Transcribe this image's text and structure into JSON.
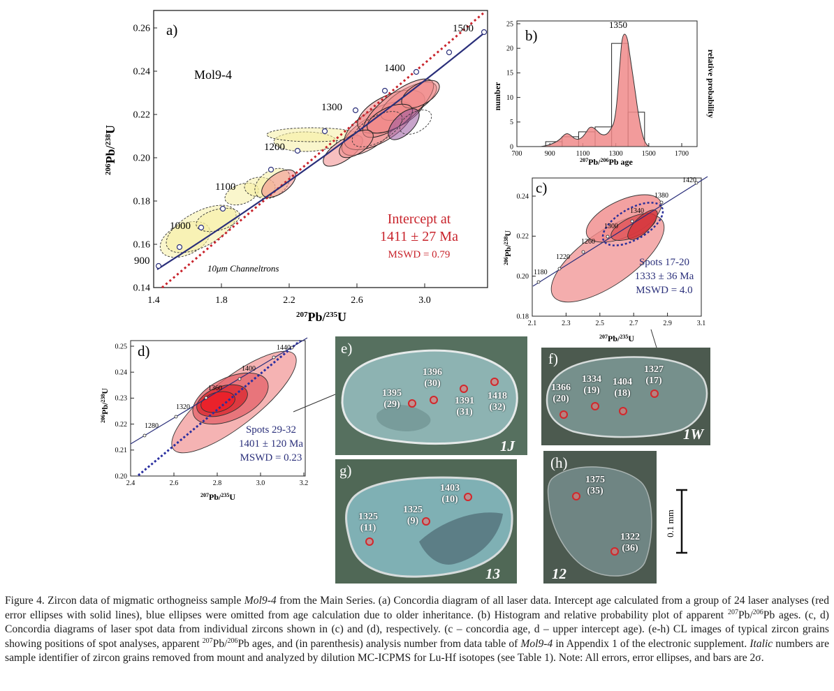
{
  "panel_a": {
    "label": "a)",
    "sample": "Mol9-4",
    "xlabel_sup": "207",
    "xlabel_a": "Pb/",
    "xlabel_sup2": "235",
    "xlabel_b": "U",
    "ylabel": "206Pb/238U",
    "xticks": [
      "1.4",
      "1.8",
      "2.2",
      "2.6",
      "3.0"
    ],
    "yticks": [
      "0.14",
      "0.16",
      "0.18",
      "0.20",
      "0.22",
      "0.24",
      "0.26"
    ],
    "age_labels": [
      "900",
      "1000",
      "1100",
      "1200",
      "1300",
      "1400",
      "1500"
    ],
    "intercept_line1": "Intercept at",
    "intercept_line2": "1411 ± 27  Ma",
    "mswd": "MSWD = 0.79",
    "note": "10μm Channeltrons"
  },
  "panel_b": {
    "label": "b)",
    "peak": "1350",
    "ylabel_left": "number",
    "ylabel_right": "relative probability",
    "xlabel": "207Pb/206Pb age",
    "xticks": [
      "700",
      "900",
      "1100",
      "1300",
      "1500",
      "1700"
    ],
    "yticks": [
      "0",
      "5",
      "10",
      "15",
      "20",
      "25"
    ]
  },
  "panel_c": {
    "label": "c)",
    "xticks": [
      "2.1",
      "2.3",
      "2.5",
      "2.7",
      "2.9",
      "3.1"
    ],
    "yticks": [
      "0.18",
      "0.20",
      "0.22",
      "0.24"
    ],
    "age_labels": [
      "1180",
      "1220",
      "1260",
      "1300",
      "1340",
      "1380",
      "1420"
    ],
    "spots": "Spots 17-20",
    "age": "1333 ± 36 Ma",
    "mswd": "MSWD = 4.0",
    "ylabel": "206Pb/238U",
    "xlabel": "207Pb/235U"
  },
  "panel_d": {
    "label": "d)",
    "xticks": [
      "2.4",
      "2.6",
      "2.8",
      "3.0",
      "3.2"
    ],
    "yticks": [
      "0.20",
      "0.21",
      "0.22",
      "0.23",
      "0.24",
      "0.25"
    ],
    "age_labels": [
      "1280",
      "1320",
      "1360",
      "1400",
      "1440"
    ],
    "spots": "Spots 29-32",
    "age": "1401 ± 120 Ma",
    "mswd": "MSWD = 0.23",
    "ylabel": "206Pb/238U",
    "xlabel": "207Pb/235U"
  },
  "panel_e": {
    "label": "e)",
    "grain": "1J",
    "spots": [
      {
        "age": "1395",
        "n": "(29)"
      },
      {
        "age": "1396",
        "n": "(30)"
      },
      {
        "age": "1391",
        "n": "(31)"
      },
      {
        "age": "1418",
        "n": "(32)"
      }
    ]
  },
  "panel_f": {
    "label": "f)",
    "grain": "1W",
    "spots": [
      {
        "age": "1366",
        "n": "(20)"
      },
      {
        "age": "1334",
        "n": "(19)"
      },
      {
        "age": "1404",
        "n": "(18)"
      },
      {
        "age": "1327",
        "n": "(17)"
      }
    ]
  },
  "panel_g": {
    "label": "g)",
    "grain": "13",
    "spots": [
      {
        "age": "1325",
        "n": "(11)"
      },
      {
        "age": "1325",
        "n": "(9)"
      },
      {
        "age": "1403",
        "n": "(10)"
      }
    ]
  },
  "panel_h": {
    "label": "(h)",
    "grain": "12",
    "spots": [
      {
        "age": "1375",
        "n": "(35)"
      },
      {
        "age": "1322",
        "n": "(36)"
      }
    ]
  },
  "scale_bar": "0.1 mm",
  "caption": {
    "p1": "Figure 4. Zircon data of migmatic orthogneiss sample ",
    "sample1": "Mol9-4",
    "p2": " from the Main Series. (a) Concordia diagram of all laser data. Intercept age calculated from a group of 24 laser analyses (red error ellipses with solid lines), blue ellipses were omitted from age calculation due to older inheritance. (b) Histogram and relative probability plot of apparent ",
    "sup1": "207",
    "p3": "Pb/",
    "sup2": "206",
    "p4": "Pb ages. (c, d) Concordia diagrams of laser spot data from individual zircons shown in (c) and (d), respectively. (c – concordia age, d – upper intercept age). (e-h) CL images of typical zircon grains showing positions of spot analyses, apparent ",
    "sup3": "207",
    "p5": "Pb/",
    "sup4": "206",
    "p6": "Pb ages, and (in parenthesis) analysis number from data table of ",
    "sample2": "Mol9-4",
    "p7": " in Appendix 1 of the electronic supplement. ",
    "italic1": "Italic",
    "p8": " numbers are sample identifier of zircon grains removed from mount and analyzed by dilution MC-ICPMS for Lu-Hf isotopes (see Table 1). Note: All errors, error ellipses, and bars are 2σ."
  },
  "chart_data": [
    {
      "type": "scatter",
      "title": "a) Mol9-4 concordia",
      "xlabel": "207Pb/235U",
      "ylabel": "206Pb/238U",
      "xlim": [
        1.4,
        3.4
      ],
      "ylim": [
        0.14,
        0.27
      ],
      "concordia_ages_Ma": [
        900,
        1000,
        1100,
        1200,
        1300,
        1400,
        1500
      ],
      "concordia_x": [
        1.43,
        1.68,
        1.93,
        2.22,
        2.52,
        2.85,
        3.18
      ],
      "concordia_y": [
        0.15,
        0.168,
        0.186,
        0.205,
        0.223,
        0.243,
        0.262
      ],
      "ellipse_centers": [
        {
          "x": 1.52,
          "y": 0.163,
          "group": "yellow"
        },
        {
          "x": 1.62,
          "y": 0.168,
          "group": "yellow"
        },
        {
          "x": 1.72,
          "y": 0.173,
          "group": "yellow"
        },
        {
          "x": 1.78,
          "y": 0.176,
          "group": "yellow"
        },
        {
          "x": 1.92,
          "y": 0.184,
          "group": "yellow"
        },
        {
          "x": 2.02,
          "y": 0.187,
          "group": "yellow"
        },
        {
          "x": 2.25,
          "y": 0.209,
          "group": "yellow"
        },
        {
          "x": 2.2,
          "y": 0.19,
          "group": "red"
        },
        {
          "x": 2.45,
          "y": 0.208,
          "group": "red"
        },
        {
          "x": 2.55,
          "y": 0.214,
          "group": "red"
        },
        {
          "x": 2.62,
          "y": 0.222,
          "group": "red"
        },
        {
          "x": 2.72,
          "y": 0.228,
          "group": "red"
        },
        {
          "x": 2.8,
          "y": 0.232,
          "group": "red"
        },
        {
          "x": 2.85,
          "y": 0.236,
          "group": "red"
        },
        {
          "x": 2.75,
          "y": 0.222,
          "group": "purple"
        },
        {
          "x": 2.9,
          "y": 0.231,
          "group": "red"
        }
      ],
      "discordia": "upper intercept 1411 Ma"
    },
    {
      "type": "bar",
      "title": "b) 207Pb/206Pb age histogram",
      "categories": [
        "900-1000",
        "1000-1100",
        "1100-1200",
        "1200-1300",
        "1300-1400",
        "1400-1500"
      ],
      "values": [
        1,
        2,
        3,
        4,
        21,
        7
      ],
      "peak_age": 1350,
      "xlim": [
        700,
        1800
      ],
      "ylim": [
        0,
        27
      ]
    },
    {
      "type": "scatter",
      "title": "c) Spots 17-20",
      "xlim": [
        2.1,
        3.1
      ],
      "ylim": [
        0.18,
        0.25
      ],
      "concordia_ages_Ma": [
        1180,
        1220,
        1260,
        1300,
        1340,
        1380,
        1420
      ],
      "concordia_x": [
        2.15,
        2.3,
        2.43,
        2.58,
        2.74,
        2.88,
        3.05
      ],
      "concordia_y": [
        0.198,
        0.204,
        0.212,
        0.223,
        0.228,
        0.238,
        0.246
      ],
      "concordia_age": "1333 ± 36 Ma",
      "mswd": 4.0
    },
    {
      "type": "scatter",
      "title": "d) Spots 29-32",
      "xlim": [
        2.4,
        3.2
      ],
      "ylim": [
        0.2,
        0.255
      ],
      "concordia_ages_Ma": [
        1280,
        1320,
        1360,
        1400,
        1440
      ],
      "concordia_x": [
        2.45,
        2.6,
        2.75,
        2.9,
        3.06
      ],
      "concordia_y": [
        0.216,
        0.224,
        0.231,
        0.239,
        0.246
      ],
      "upper_intercept": "1401 ± 120 Ma",
      "mswd": 0.23
    }
  ]
}
